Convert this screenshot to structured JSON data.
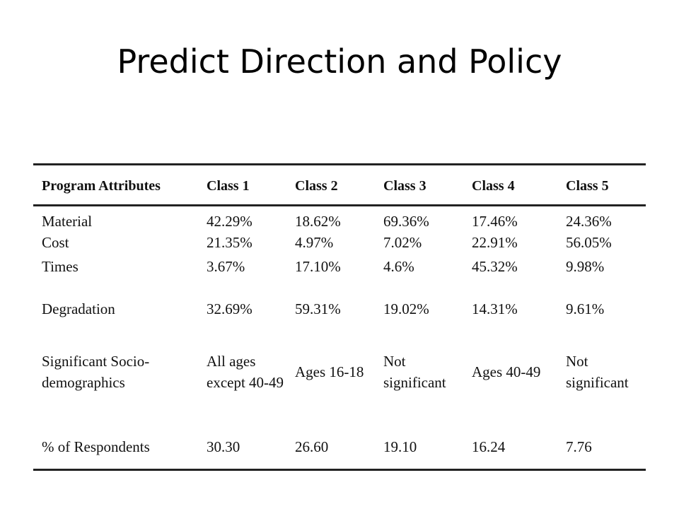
{
  "title": "Predict Direction and Policy",
  "table": {
    "headers": [
      "Program Attributes",
      "Class 1",
      "Class 2",
      "Class 3",
      "Class 4",
      "Class 5"
    ],
    "rows": [
      {
        "label_line1": "Material",
        "label_line2": "Cost",
        "cells": [
          {
            "line1": "42.29%",
            "line2": "21.35%"
          },
          {
            "line1": "18.62%",
            "line2": "4.97%"
          },
          {
            "line1": "69.36%",
            "line2": "7.02%"
          },
          {
            "line1": "17.46%",
            "line2": "22.91%"
          },
          {
            "line1": "24.36%",
            "line2": "56.05%"
          }
        ]
      },
      {
        "label": "Times",
        "cells": [
          "3.67%",
          "17.10%",
          "4.6%",
          "45.32%",
          "9.98%"
        ]
      },
      {
        "label": "Degradation",
        "cells": [
          "32.69%",
          "59.31%",
          "19.02%",
          "14.31%",
          "9.61%"
        ]
      },
      {
        "label_line1": "Significant Socio-",
        "label_line2": "demographics",
        "cells": [
          {
            "line1": "All ages",
            "line2": "except 40-49"
          },
          {
            "line1": "Ages 16-18",
            "line2": ""
          },
          {
            "line1": "Not",
            "line2": "significant"
          },
          {
            "line1": "Ages 40-49",
            "line2": ""
          },
          {
            "line1": "Not",
            "line2": "significant"
          }
        ]
      },
      {
        "label": "% of Respondents",
        "cells": [
          "30.30",
          "26.60",
          "19.10",
          "16.24",
          "7.76"
        ]
      }
    ]
  }
}
